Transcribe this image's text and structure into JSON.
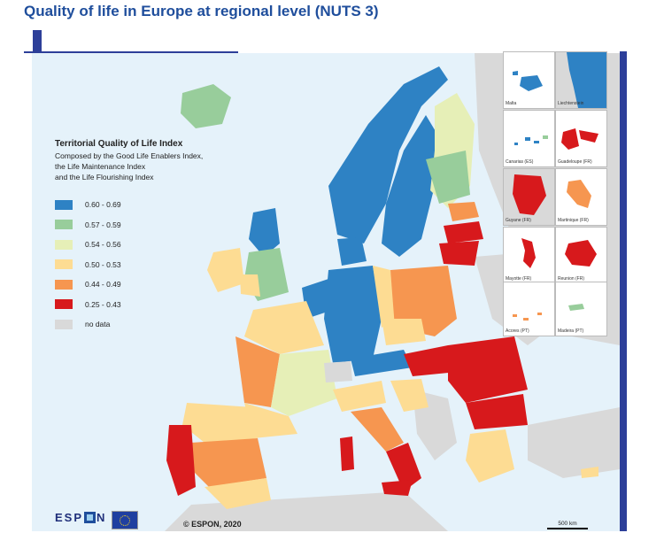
{
  "page": {
    "title": "Quality of life in Europe at regional level (NUTS 3)"
  },
  "legend": {
    "title": "Territorial Quality of Life Index",
    "subtitle_lines": [
      "Composed by the Good Life Enablers Index,",
      "the Life Maintenance Index",
      "and the Life Flourishing Index"
    ],
    "items": [
      {
        "label": "0.60 - 0.69",
        "color": "#2e82c4"
      },
      {
        "label": "0.57 - 0.59",
        "color": "#98cd9b"
      },
      {
        "label": "0.54 - 0.56",
        "color": "#e6efb7"
      },
      {
        "label": "0.50 - 0.53",
        "color": "#fddc93"
      },
      {
        "label": "0.44 - 0.49",
        "color": "#f69650"
      },
      {
        "label": "0.25 - 0.43",
        "color": "#d7191c"
      },
      {
        "label": "no data",
        "color": "#d9d9d9"
      }
    ]
  },
  "insets": [
    {
      "label": "Malta"
    },
    {
      "label": "Liechtenstein"
    },
    {
      "label": "Canarias (ES)"
    },
    {
      "label": "Guadeloupe (FR)"
    },
    {
      "label": "Guyane (FR)"
    },
    {
      "label": "Martinique (FR)"
    },
    {
      "label": "Mayotte (FR)"
    },
    {
      "label": "Reunion (FR)"
    },
    {
      "label": "Acores (PT)"
    },
    {
      "label": "Madeira (PT)"
    }
  ],
  "footer": {
    "logo_text_left": "ESP",
    "logo_text_right": "N",
    "copyright": "© ESPON, 2020",
    "scale_label": "500 km"
  },
  "colors": {
    "accent": "#2d3f99",
    "title": "#1f4e9c",
    "sea": "#e5f2fa",
    "no_data": "#d9d9d9"
  }
}
